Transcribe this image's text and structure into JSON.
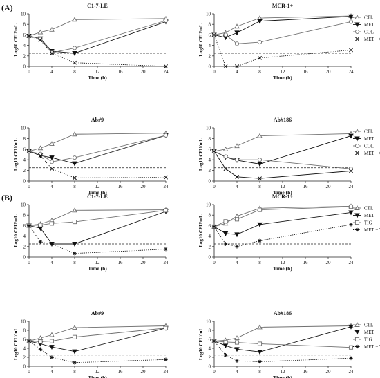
{
  "figure": {
    "section_labels": [
      "(A)",
      "(B)"
    ]
  },
  "chart_data": [
    {
      "type": "line",
      "title": "C1-7-LE",
      "xlabel": "Time (h)",
      "ylabel": "Log10 CFU/mL",
      "xlim": [
        0,
        24
      ],
      "ylim": [
        0,
        10
      ],
      "x_ticks": [
        0,
        4,
        8,
        12,
        16,
        20,
        24
      ],
      "y_ticks": [
        0,
        2,
        4,
        6,
        8,
        10
      ],
      "threshold": 2.5,
      "legend": "none",
      "x": [
        0,
        2,
        4,
        8,
        24
      ],
      "series": [
        {
          "name": "CTL",
          "marker": "triangle",
          "line": "solid",
          "values": [
            5.8,
            6.5,
            7.0,
            8.9,
            9.1
          ]
        },
        {
          "name": "MET",
          "marker": "triangle-down",
          "line": "solid",
          "values": [
            5.8,
            5.3,
            2.9,
            2.5,
            8.5
          ]
        },
        {
          "name": "COL",
          "marker": "circle",
          "line": "solid",
          "values": [
            5.8,
            5.2,
            2.6,
            3.5,
            8.7
          ]
        },
        {
          "name": "MET + COL",
          "marker": "x",
          "line": "dotted",
          "values": [
            5.8,
            5.0,
            2.5,
            0.7,
            0.0
          ]
        }
      ]
    },
    {
      "type": "line",
      "title": "MCR-1+",
      "xlabel": "Time (h)",
      "ylabel": "Log10 CFU/mL",
      "xlim": [
        0,
        24
      ],
      "ylim": [
        0,
        10
      ],
      "x_ticks": [
        0,
        4,
        8,
        12,
        16,
        20,
        24
      ],
      "y_ticks": [
        0,
        2,
        4,
        6,
        8,
        10
      ],
      "threshold": 2.5,
      "legend": "right",
      "x": [
        0,
        2,
        4,
        8,
        24
      ],
      "series": [
        {
          "name": "CTL",
          "marker": "triangle",
          "line": "solid",
          "values": [
            6.0,
            6.4,
            7.6,
            9.2,
            9.6
          ]
        },
        {
          "name": "MET",
          "marker": "triangle-down",
          "line": "solid",
          "values": [
            6.0,
            5.5,
            6.4,
            8.6,
            9.5
          ]
        },
        {
          "name": "COL",
          "marker": "circle",
          "line": "solid",
          "values": [
            6.0,
            6.0,
            4.3,
            4.6,
            8.5
          ]
        },
        {
          "name": "MET + COL",
          "marker": "x",
          "line": "dotted",
          "values": [
            6.0,
            0.0,
            0.0,
            1.6,
            3.1
          ]
        }
      ]
    },
    {
      "type": "line",
      "title": "Ab#9",
      "xlabel": "Time (h)",
      "ylabel": "Log10 CFU/mL",
      "xlim": [
        0,
        24
      ],
      "ylim": [
        0,
        10
      ],
      "x_ticks": [
        0,
        4,
        8,
        12,
        16,
        20,
        24
      ],
      "y_ticks": [
        0,
        2,
        4,
        6,
        8,
        10
      ],
      "threshold": 2.5,
      "legend": "none",
      "x": [
        0,
        2,
        4,
        8,
        24
      ],
      "series": [
        {
          "name": "CTL",
          "marker": "triangle",
          "line": "solid",
          "values": [
            5.6,
            6.2,
            7.0,
            8.8,
            9.0
          ]
        },
        {
          "name": "MET",
          "marker": "triangle-down",
          "line": "solid",
          "values": [
            5.6,
            4.8,
            4.4,
            3.3,
            8.6
          ]
        },
        {
          "name": "COL",
          "marker": "circle",
          "line": "solid",
          "values": [
            5.6,
            5.1,
            3.6,
            4.4,
            8.6
          ]
        },
        {
          "name": "MET + COL",
          "marker": "x",
          "line": "dotted",
          "values": [
            5.6,
            4.8,
            2.3,
            0.6,
            0.7
          ]
        }
      ]
    },
    {
      "type": "line",
      "title": "Ab#186",
      "xlabel": "Time (h)",
      "ylabel": "Log10 CFU/mL",
      "xlim": [
        0,
        24
      ],
      "ylim": [
        0,
        10
      ],
      "x_ticks": [
        0,
        4,
        8,
        12,
        16,
        20,
        24
      ],
      "y_ticks": [
        0,
        2,
        4,
        6,
        8,
        10
      ],
      "threshold": 2.5,
      "legend": "right",
      "x": [
        0,
        2,
        4,
        8,
        24
      ],
      "series": [
        {
          "name": "CTL",
          "marker": "triangle",
          "line": "solid",
          "values": [
            5.6,
            6.0,
            6.6,
            8.5,
            8.9
          ]
        },
        {
          "name": "MET",
          "marker": "triangle-down",
          "line": "solid",
          "values": [
            5.6,
            4.5,
            3.9,
            3.2,
            8.5
          ]
        },
        {
          "name": "COL",
          "marker": "circle",
          "line": "solid",
          "values": [
            5.6,
            4.6,
            4.0,
            4.0,
            2.3
          ]
        },
        {
          "name": "MET + COL",
          "marker": "x",
          "line": "solid",
          "values": [
            5.6,
            2.3,
            0.8,
            0.5,
            1.9
          ]
        }
      ]
    },
    {
      "type": "line",
      "title": "C1-7-LE",
      "xlabel": "Time (h)",
      "ylabel": "Log10 CFU/mL",
      "xlim": [
        0,
        24
      ],
      "ylim": [
        0,
        10
      ],
      "x_ticks": [
        0,
        4,
        8,
        12,
        16,
        20,
        24
      ],
      "y_ticks": [
        0,
        2,
        4,
        6,
        8,
        10
      ],
      "threshold": 2.5,
      "legend": "none",
      "x": [
        0,
        2,
        4,
        8,
        24
      ],
      "series": [
        {
          "name": "CTL",
          "marker": "triangle",
          "line": "solid",
          "values": [
            6.0,
            6.3,
            7.0,
            8.9,
            9.0
          ]
        },
        {
          "name": "MET",
          "marker": "triangle-down",
          "line": "solid",
          "values": [
            6.0,
            5.5,
            2.5,
            2.5,
            8.7
          ]
        },
        {
          "name": "TIG",
          "marker": "square",
          "line": "solid",
          "values": [
            6.0,
            6.1,
            6.4,
            6.7,
            8.9
          ]
        },
        {
          "name": "MET + TIG",
          "marker": "star",
          "line": "dotted",
          "values": [
            6.0,
            2.9,
            2.5,
            0.7,
            1.5
          ]
        }
      ]
    },
    {
      "type": "line",
      "title": "MCR-1+",
      "xlabel": "Time (h)",
      "ylabel": "Log10 CFU/mL",
      "xlim": [
        0,
        24
      ],
      "ylim": [
        0,
        10
      ],
      "x_ticks": [
        0,
        4,
        8,
        12,
        16,
        20,
        24
      ],
      "y_ticks": [
        0,
        2,
        4,
        6,
        8,
        10
      ],
      "threshold": 2.5,
      "legend": "right",
      "x": [
        0,
        2,
        4,
        8,
        24
      ],
      "series": [
        {
          "name": "CTL",
          "marker": "triangle",
          "line": "solid",
          "values": [
            5.8,
            6.4,
            7.8,
            9.3,
            9.7
          ]
        },
        {
          "name": "MET",
          "marker": "triangle-down",
          "line": "solid",
          "values": [
            5.8,
            4.5,
            4.3,
            6.2,
            8.5
          ]
        },
        {
          "name": "TIG",
          "marker": "square",
          "line": "solid",
          "values": [
            5.8,
            6.8,
            7.2,
            9.0,
            9.6
          ]
        },
        {
          "name": "MET + TIG",
          "marker": "star",
          "line": "dotted",
          "values": [
            5.8,
            2.5,
            2.0,
            3.1,
            6.2
          ]
        }
      ]
    },
    {
      "type": "line",
      "title": "Ab#9",
      "xlabel": "Time (h)",
      "ylabel": "Log10 CFU/mL",
      "xlim": [
        0,
        24
      ],
      "ylim": [
        0,
        10
      ],
      "x_ticks": [
        0,
        4,
        8,
        12,
        16,
        20,
        24
      ],
      "y_ticks": [
        0,
        2,
        4,
        6,
        8,
        10
      ],
      "threshold": 2.5,
      "legend": "none",
      "x": [
        0,
        2,
        4,
        8,
        24
      ],
      "series": [
        {
          "name": "CTL",
          "marker": "triangle",
          "line": "solid",
          "values": [
            5.6,
            6.3,
            7.0,
            8.6,
            9.0
          ]
        },
        {
          "name": "MET",
          "marker": "triangle-down",
          "line": "solid",
          "values": [
            5.6,
            5.0,
            4.3,
            3.3,
            8.5
          ]
        },
        {
          "name": "TIG",
          "marker": "square",
          "line": "solid",
          "values": [
            5.6,
            5.5,
            5.6,
            6.5,
            8.5
          ]
        },
        {
          "name": "MET + TIG",
          "marker": "star",
          "line": "dotted",
          "values": [
            5.6,
            3.8,
            2.0,
            0.8,
            1.5
          ]
        }
      ]
    },
    {
      "type": "line",
      "title": "Ab#186",
      "xlabel": "Time (h)",
      "ylabel": "Log10 CFU/mL",
      "xlim": [
        0,
        24
      ],
      "ylim": [
        0,
        10
      ],
      "x_ticks": [
        0,
        4,
        8,
        12,
        16,
        20,
        24
      ],
      "y_ticks": [
        0,
        2,
        4,
        6,
        8,
        10
      ],
      "threshold": 2.5,
      "legend": "right",
      "x": [
        0,
        2,
        4,
        8,
        24
      ],
      "series": [
        {
          "name": "CTL",
          "marker": "triangle",
          "line": "solid",
          "values": [
            5.6,
            5.8,
            6.3,
            8.7,
            9.0
          ]
        },
        {
          "name": "MET",
          "marker": "triangle-down",
          "line": "solid",
          "values": [
            5.6,
            4.6,
            3.8,
            3.2,
            8.8
          ]
        },
        {
          "name": "TIG",
          "marker": "square",
          "line": "solid",
          "values": [
            5.6,
            5.4,
            5.3,
            5.0,
            4.2
          ]
        },
        {
          "name": "MET + TIG",
          "marker": "star",
          "line": "dotted",
          "values": [
            5.6,
            2.5,
            1.2,
            1.0,
            1.8
          ]
        }
      ]
    }
  ]
}
